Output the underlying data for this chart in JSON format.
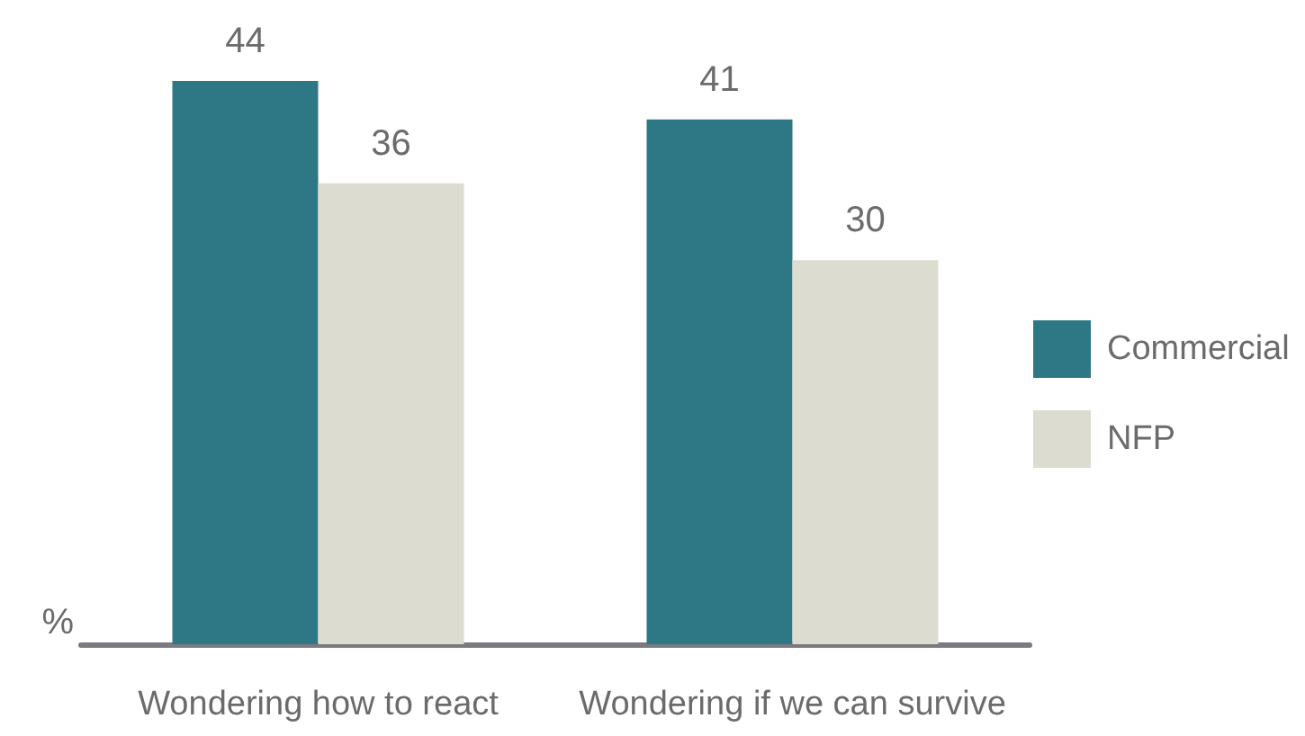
{
  "chart_data": {
    "type": "bar",
    "ylabel": "%",
    "categories": [
      "Wondering how to react",
      "Wondering if we can survive"
    ],
    "series": [
      {
        "name": "Commercial",
        "color": "#2e7886",
        "values": [
          44,
          41
        ]
      },
      {
        "name": "NFP",
        "color": "#dcdcd0",
        "values": [
          36,
          30
        ]
      }
    ],
    "data_labels": true,
    "legend": "right"
  }
}
